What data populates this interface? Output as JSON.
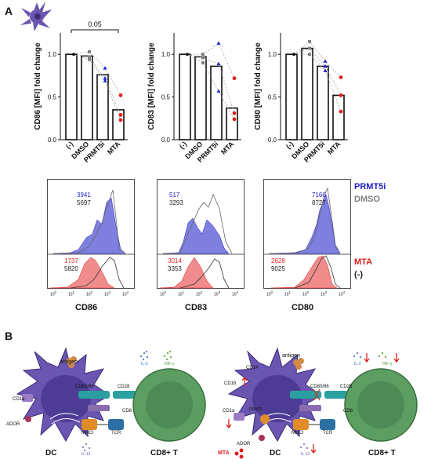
{
  "panels": {
    "a": "A",
    "b": "B"
  },
  "colors": {
    "prmt5i": "#2222cc",
    "dmso": "#808080",
    "mta": "#e01e1e",
    "blue_fill": "#7f7fe0",
    "red_fill": "#f08c8c",
    "cell_purple": "#6a55b0",
    "tcell_green": "#5c9e62",
    "tcell_inner": "#4e8a55",
    "cd80": "#2aa0a0",
    "mhc": "#e08c2a",
    "tcr": "#2b6fa3"
  },
  "significance": "0.05",
  "chart_data": [
    {
      "type": "bar",
      "ylabel": "CD86 [MFI] fold change",
      "categories": [
        "(-)",
        "DMSO",
        "PRMT5i",
        "MTA"
      ],
      "values": [
        1.0,
        0.98,
        0.76,
        0.35
      ],
      "ylim": [
        0.0,
        1.25
      ],
      "yticks": [
        "0.0",
        "0.5",
        "1.0"
      ],
      "points": {
        "(-)": [
          1.0,
          1.0,
          1.0
        ],
        "DMSO": [
          1.03,
          0.97,
          0.94
        ],
        "PRMT5i": [
          0.84,
          0.72,
          0.69
        ],
        "MTA": [
          0.52,
          0.29,
          0.23
        ]
      },
      "significance": "0.05"
    },
    {
      "type": "bar",
      "ylabel": "CD83 [MFI] fold change",
      "categories": [
        "(-)",
        "DMSO",
        "PRMT5i",
        "MTA"
      ],
      "values": [
        1.0,
        0.97,
        0.86,
        0.37
      ],
      "ylim": [
        0.0,
        1.25
      ],
      "yticks": [
        "0.0",
        "0.5",
        "1.0"
      ],
      "points": {
        "(-)": [
          1.0,
          1.0,
          1.0
        ],
        "DMSO": [
          1.0,
          0.96,
          0.9
        ],
        "PRMT5i": [
          1.13,
          0.89,
          0.57
        ],
        "MTA": [
          0.72,
          0.31,
          0.24
        ]
      }
    },
    {
      "type": "bar",
      "ylabel": "CD80 [MFI] fold change",
      "categories": [
        "(-)",
        "DMSO",
        "PRMT5i",
        "MTA"
      ],
      "values": [
        1.0,
        1.07,
        0.86,
        0.52
      ],
      "ylim": [
        0.0,
        1.25
      ],
      "yticks": [
        "0.0",
        "0.5",
        "1.0"
      ],
      "points": {
        "(-)": [
          1.0,
          1.0,
          1.0
        ],
        "DMSO": [
          1.15,
          1.07,
          1.0
        ],
        "PRMT5i": [
          0.92,
          0.86,
          0.81
        ],
        "MTA": [
          0.73,
          0.52,
          0.33
        ]
      }
    }
  ],
  "histograms": [
    {
      "marker": "CD86",
      "prmt5i": "3941",
      "dmso": "5697",
      "mta": "1737",
      "neg": "5820"
    },
    {
      "marker": "CD83",
      "prmt5i": "517",
      "dmso": "3293",
      "mta": "3014",
      "neg": "3353"
    },
    {
      "marker": "CD80",
      "prmt5i": "7160",
      "dmso": "8727",
      "mta": "2628",
      "neg": "9025"
    }
  ],
  "hist_axis_ticks": [
    "10",
    "10",
    "10",
    "10",
    "10"
  ],
  "hist_axis_exponents": [
    "0",
    "1",
    "2",
    "3",
    "4"
  ],
  "legend": {
    "prmt5i": "PRMT5i",
    "dmso": "DMSO",
    "mta": "MTA",
    "neg": "(-)"
  },
  "diagram": {
    "left": {
      "dc": "DC",
      "tcell": "CD8+ T",
      "antigen": "antigen",
      "cd80_86": "CD80/86",
      "cd28": "CD28",
      "cd8": "CD8",
      "mhci": "MHCI",
      "tcr": "TCR",
      "cd1a": "CD1a",
      "ador": "ADOR",
      "il2": "IL-2",
      "ifn": "INF-γ",
      "il12": "IL-12"
    },
    "right": {
      "dc": "DC",
      "tcell": "CD8+ T",
      "antigen": "antigen",
      "cd80_86": "CD80/86",
      "cd28": "CD28",
      "cd8": "CD8",
      "mhci": "MHCI",
      "tcr": "TCR",
      "cd1a": "CD1a",
      "ador": "ADOR",
      "cd14": "CD14",
      "cd16": "CD16",
      "prmt5": "PRMT5",
      "mta": "MTA",
      "il2": "IL-2",
      "ifn": "INF-γ",
      "il12": "IL-12"
    }
  }
}
